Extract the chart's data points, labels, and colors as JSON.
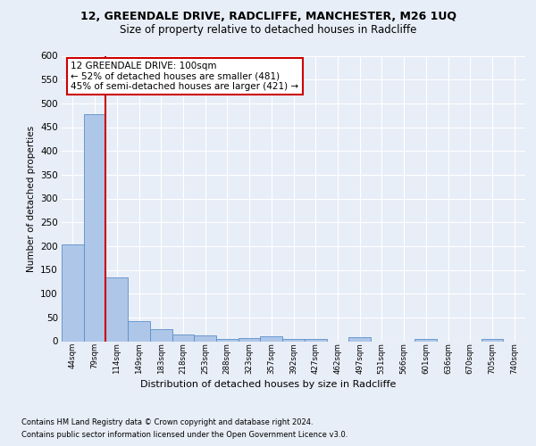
{
  "title1": "12, GREENDALE DRIVE, RADCLIFFE, MANCHESTER, M26 1UQ",
  "title2": "Size of property relative to detached houses in Radcliffe",
  "xlabel": "Distribution of detached houses by size in Radcliffe",
  "ylabel": "Number of detached properties",
  "footnote1": "Contains HM Land Registry data © Crown copyright and database right 2024.",
  "footnote2": "Contains public sector information licensed under the Open Government Licence v3.0.",
  "bin_labels": [
    "44sqm",
    "79sqm",
    "114sqm",
    "149sqm",
    "183sqm",
    "218sqm",
    "253sqm",
    "288sqm",
    "323sqm",
    "357sqm",
    "392sqm",
    "427sqm",
    "462sqm",
    "497sqm",
    "531sqm",
    "566sqm",
    "601sqm",
    "636sqm",
    "670sqm",
    "705sqm",
    "740sqm"
  ],
  "bar_values": [
    203,
    478,
    134,
    43,
    25,
    14,
    12,
    5,
    7,
    11,
    5,
    5,
    0,
    8,
    0,
    0,
    5,
    0,
    0,
    5,
    0
  ],
  "bar_color": "#aec6e8",
  "bar_edge_color": "#5b8fc9",
  "highlight_color": "#cc0000",
  "annotation_text": "12 GREENDALE DRIVE: 100sqm\n← 52% of detached houses are smaller (481)\n45% of semi-detached houses are larger (421) →",
  "annotation_box_color": "#ffffff",
  "annotation_box_edge": "#cc0000",
  "ylim": [
    0,
    600
  ],
  "yticks": [
    0,
    50,
    100,
    150,
    200,
    250,
    300,
    350,
    400,
    450,
    500,
    550,
    600
  ],
  "background_color": "#e8eef7",
  "plot_bg_color": "#e8eef7",
  "grid_color": "#ffffff"
}
